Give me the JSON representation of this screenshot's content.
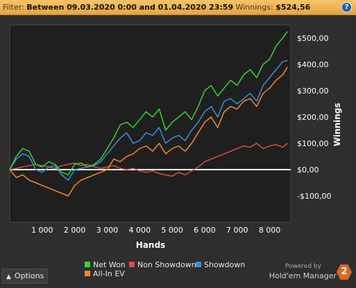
{
  "filter": {
    "label": "Filter:",
    "range": "Between 09.03.2020 0:00 and 01.04.2020 23:59",
    "winnings_label": "Winnings:",
    "winnings_value": "$524,56"
  },
  "help_icon": "question-mark-icon",
  "options": {
    "label": "Options",
    "icon": "caret-up-icon"
  },
  "brand": {
    "powered_by": "Powered by",
    "name": "Hold'em Manager",
    "logo_text": "2"
  },
  "colors": {
    "net_won": "#35d335",
    "non_showdown": "#e04a4a",
    "showdown": "#3a8fd8",
    "all_in_ev": "#f08a2a",
    "zero_line": "#ffffff"
  },
  "chart_data": {
    "type": "line",
    "xlabel": "Hands",
    "ylabel": "Winnings",
    "xlim": [
      0,
      8650
    ],
    "ylim": [
      -200,
      550
    ],
    "x_ticks": [
      1000,
      2000,
      3000,
      4000,
      5000,
      6000,
      7000,
      8000
    ],
    "x_tick_labels": [
      "1 000",
      "2 000",
      "3 000",
      "4 000",
      "5 000",
      "6 000",
      "7 000",
      "8 000"
    ],
    "y_ticks": [
      -100,
      0,
      100,
      200,
      300,
      400,
      500
    ],
    "y_tick_labels": [
      "-$100,00",
      "$0,00",
      "$100,00",
      "$200,00",
      "$300,00",
      "$400,00",
      "$500,00"
    ],
    "zero_line": true,
    "grid": false,
    "legend": "bottom",
    "series": [
      {
        "name": "Net Won",
        "x": [
          0,
          200,
          400,
          600,
          800,
          1000,
          1200,
          1400,
          1600,
          1800,
          2000,
          2200,
          2400,
          2600,
          2800,
          3000,
          3200,
          3400,
          3600,
          3800,
          4000,
          4200,
          4400,
          4600,
          4800,
          5000,
          5200,
          5400,
          5600,
          5800,
          6000,
          6200,
          6400,
          6600,
          6800,
          7000,
          7200,
          7400,
          7600,
          7800,
          8000,
          8200,
          8400,
          8550
        ],
        "values": [
          0,
          50,
          80,
          70,
          20,
          10,
          30,
          20,
          -10,
          -20,
          20,
          25,
          10,
          20,
          40,
          80,
          120,
          170,
          180,
          160,
          190,
          220,
          200,
          230,
          150,
          180,
          200,
          220,
          190,
          240,
          300,
          320,
          280,
          310,
          340,
          320,
          360,
          380,
          350,
          400,
          420,
          470,
          500,
          525
        ]
      },
      {
        "name": "Non Showdown",
        "x": [
          0,
          200,
          400,
          600,
          800,
          1000,
          1200,
          1400,
          1600,
          1800,
          2000,
          2200,
          2400,
          2600,
          2800,
          3000,
          3200,
          3400,
          3600,
          3800,
          4000,
          4200,
          4400,
          4600,
          4800,
          5000,
          5200,
          5400,
          5600,
          5800,
          6000,
          6200,
          6400,
          6600,
          6800,
          7000,
          7200,
          7400,
          7600,
          7800,
          8000,
          8200,
          8400,
          8550
        ],
        "values": [
          0,
          5,
          10,
          15,
          20,
          15,
          10,
          5,
          15,
          20,
          25,
          15,
          20,
          10,
          5,
          10,
          15,
          5,
          0,
          5,
          -5,
          -10,
          -5,
          -15,
          -20,
          -25,
          -10,
          -20,
          -5,
          10,
          30,
          40,
          50,
          60,
          70,
          80,
          90,
          85,
          100,
          80,
          90,
          95,
          85,
          100
        ]
      },
      {
        "name": "Showdown",
        "x": [
          0,
          200,
          400,
          600,
          800,
          1000,
          1200,
          1400,
          1600,
          1800,
          2000,
          2200,
          2400,
          2600,
          2800,
          3000,
          3200,
          3400,
          3600,
          3800,
          4000,
          4200,
          4400,
          4600,
          4800,
          5000,
          5200,
          5400,
          5600,
          5800,
          6000,
          6200,
          6400,
          6600,
          6800,
          7000,
          7200,
          7400,
          7600,
          7800,
          8000,
          8200,
          8400,
          8550
        ],
        "values": [
          0,
          40,
          60,
          50,
          0,
          -10,
          10,
          15,
          -20,
          -40,
          0,
          5,
          10,
          15,
          30,
          60,
          90,
          120,
          140,
          100,
          110,
          140,
          130,
          160,
          100,
          120,
          130,
          110,
          150,
          180,
          220,
          240,
          200,
          260,
          270,
          250,
          270,
          290,
          260,
          320,
          350,
          380,
          410,
          415
        ]
      },
      {
        "name": "All-In EV",
        "x": [
          0,
          200,
          400,
          600,
          800,
          1000,
          1200,
          1400,
          1600,
          1800,
          2000,
          2200,
          2400,
          2600,
          2800,
          3000,
          3200,
          3400,
          3600,
          3800,
          4000,
          4200,
          4400,
          4600,
          4800,
          5000,
          5200,
          5400,
          5600,
          5800,
          6000,
          6200,
          6400,
          6600,
          6800,
          7000,
          7200,
          7400,
          7600,
          7800,
          8000,
          8200,
          8400,
          8550
        ],
        "values": [
          0,
          -30,
          -20,
          -40,
          -50,
          -60,
          -70,
          -80,
          -90,
          -100,
          -60,
          -40,
          -30,
          -20,
          -10,
          0,
          40,
          30,
          50,
          60,
          80,
          90,
          70,
          100,
          60,
          80,
          90,
          70,
          100,
          140,
          180,
          200,
          160,
          220,
          240,
          230,
          260,
          270,
          240,
          290,
          310,
          340,
          360,
          390
        ]
      }
    ]
  }
}
